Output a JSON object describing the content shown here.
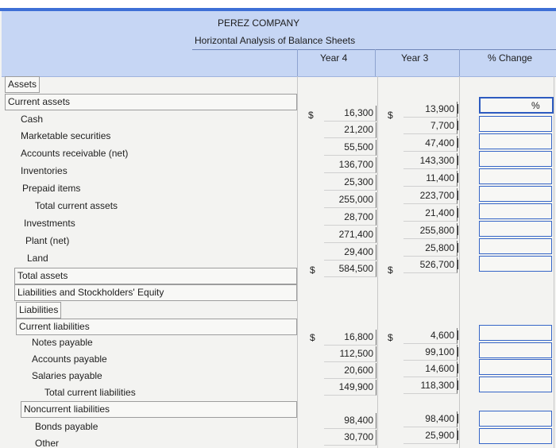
{
  "header": {
    "company": "PEREZ COMPANY",
    "subtitle": "Horizontal Analysis of Balance Sheets",
    "col_year4": "Year 4",
    "col_year3": "Year 3",
    "col_change": "% Change"
  },
  "currency_symbol": "$",
  "percent_symbol": "%",
  "rows": {
    "assets": {
      "label": "Assets"
    },
    "current_assets": {
      "label": "Current assets"
    },
    "cash": {
      "label": "Cash",
      "y4": "16,300",
      "y3": "13,900"
    },
    "marketable": {
      "label": "Marketable securities",
      "y4": "21,200",
      "y3": "7,700"
    },
    "receivable": {
      "label": "Accounts receivable (net)",
      "y4": "55,500",
      "y3": "47,400"
    },
    "inventories": {
      "label": "Inventories",
      "y4": "136,700",
      "y3": "143,300"
    },
    "prepaid": {
      "label": "Prepaid items",
      "y4": "25,300",
      "y3": "11,400"
    },
    "total_current_assets": {
      "label": "Total current assets",
      "y4": "255,000",
      "y3": "223,700"
    },
    "investments": {
      "label": "Investments",
      "y4": "28,700",
      "y3": "21,400"
    },
    "plant": {
      "label": "Plant (net)",
      "y4": "271,400",
      "y3": "255,800"
    },
    "land": {
      "label": "Land",
      "y4": "29,400",
      "y3": "25,800"
    },
    "total_assets": {
      "label": "Total assets",
      "y4": "584,500",
      "y3": "526,700"
    },
    "liab_equity": {
      "label": "Liabilities and Stockholders' Equity"
    },
    "liabilities": {
      "label": "Liabilities"
    },
    "current_liabilities": {
      "label": "Current liabilities"
    },
    "notes_payable": {
      "label": "Notes payable",
      "y4": "16,800",
      "y3": "4,600"
    },
    "accounts_payable": {
      "label": "Accounts payable",
      "y4": "112,500",
      "y3": "99,100"
    },
    "salaries_payable": {
      "label": "Salaries payable",
      "y4": "20,600",
      "y3": "14,600"
    },
    "total_current_liabilities": {
      "label": "Total current liabilities",
      "y4": "149,900",
      "y3": "118,300"
    },
    "noncurrent": {
      "label": "Noncurrent liabilities"
    },
    "bonds_payable": {
      "label": "Bonds payable",
      "y4": "98,400",
      "y3": "98,400"
    },
    "other": {
      "label": "Other",
      "y4": "30,700",
      "y3": "25,900"
    }
  }
}
